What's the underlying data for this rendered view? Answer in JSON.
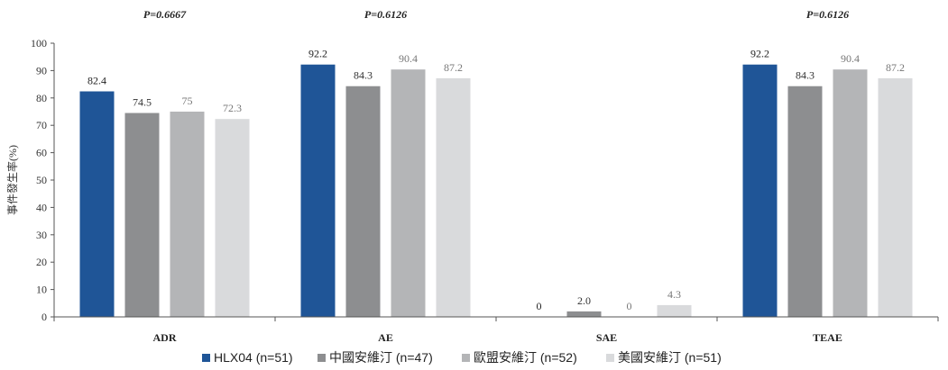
{
  "chart_data": {
    "type": "bar",
    "categories": [
      "ADR",
      "AE",
      "SAE",
      "TEAE"
    ],
    "series": [
      {
        "name": "HLX04 (n=51)",
        "color": "#1f5597",
        "values": [
          82.4,
          92.2,
          0,
          92.2
        ],
        "labels": [
          "82.4",
          "92.2",
          "0",
          "92.2"
        ]
      },
      {
        "name": "中國安維汀 (n=47)",
        "color": "#8d8e90",
        "values": [
          74.5,
          84.3,
          2.0,
          84.3
        ],
        "labels": [
          "74.5",
          "84.3",
          "2.0",
          "84.3"
        ]
      },
      {
        "name": "歐盟安維汀 (n=52)",
        "color": "#b4b5b7",
        "values": [
          75,
          90.4,
          0,
          90.4
        ],
        "labels": [
          "75",
          "90.4",
          "0",
          "90.4"
        ]
      },
      {
        "name": "美國安維汀 (n=51)",
        "color": "#d9dadc",
        "values": [
          72.3,
          87.2,
          4.3,
          87.2
        ],
        "labels": [
          "72.3",
          "87.2",
          "4.3",
          "87.2"
        ]
      }
    ],
    "p_values": [
      "P=0.6667",
      "P=0.6126",
      "",
      "P=0.6126"
    ],
    "ylabel": "事件發生率(%)",
    "ylim": [
      0,
      100
    ],
    "yticks": [
      "0",
      "10",
      "20",
      "30",
      "40",
      "50",
      "60",
      "70",
      "80",
      "90",
      "100"
    ],
    "grid": false,
    "legend_position": "bottom"
  }
}
